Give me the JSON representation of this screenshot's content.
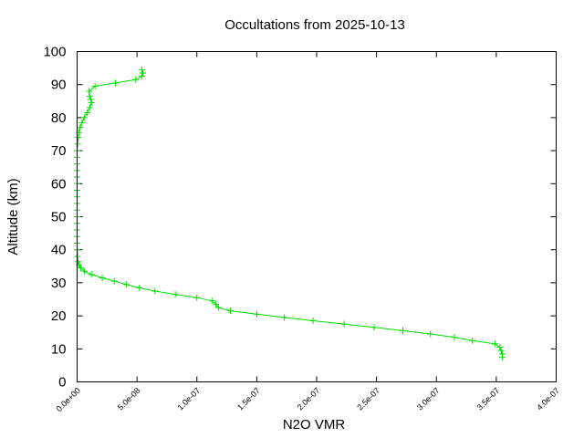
{
  "chart_data": {
    "type": "line",
    "title": "Occultations from 2025-10-13",
    "xlabel": "N2O VMR",
    "ylabel": "Altitude (km)",
    "xlim": [
      0,
      4e-07
    ],
    "ylim": [
      0,
      100
    ],
    "x_ticks": [
      0,
      5e-08,
      1e-07,
      1.5e-07,
      2e-07,
      2.5e-07,
      3e-07,
      3.5e-07,
      4e-07
    ],
    "x_tick_labels": [
      "0.0e+00",
      "5.0e-08",
      "1.0e-07",
      "1.5e-07",
      "2.0e-07",
      "2.5e-07",
      "3.0e-07",
      "3.5e-07",
      "4.0e-07"
    ],
    "y_ticks": [
      0,
      10,
      20,
      30,
      40,
      50,
      60,
      70,
      80,
      90,
      100
    ],
    "y_tick_labels": [
      "0",
      "10",
      "20",
      "30",
      "40",
      "50",
      "60",
      "70",
      "80",
      "90",
      "100"
    ],
    "grid": false,
    "legend": "none",
    "marker": "plus",
    "color": "#00e000",
    "series": [
      {
        "x": [
          3.55e-07,
          3.55e-07,
          3.54e-07,
          3.53e-07,
          3.49e-07,
          3.3e-07,
          3.15e-07,
          2.95e-07,
          2.72e-07,
          2.48e-07,
          2.23e-07,
          1.97e-07,
          1.73e-07,
          1.5e-07,
          1.28e-07,
          1.18e-07,
          1.16e-07,
          1.13e-07,
          1e-07,
          8.2e-08,
          6.5e-08,
          5.2e-08,
          4.1e-08,
          3.1e-08,
          2.1e-08,
          1.2e-08,
          6e-09,
          3e-09,
          1.5e-09,
          8e-10,
          3e-10,
          1e-10,
          0,
          0,
          0,
          0,
          0,
          0,
          0,
          0,
          0,
          0,
          0,
          0,
          0,
          0,
          0,
          5e-10,
          1e-09,
          1.5e-09,
          2.5e-09,
          4e-09,
          6e-09,
          8.5e-09,
          1.05e-08,
          1.2e-08,
          1.15e-08,
          1.05e-08,
          1e-08,
          1.5e-08,
          3.2e-08,
          4.9e-08,
          5.4e-08,
          5.5e-08,
          5.4e-08
        ],
        "y": [
          7.5,
          8.5,
          9.5,
          10.5,
          11.5,
          12.5,
          13.5,
          14.5,
          15.5,
          16.5,
          17.5,
          18.5,
          19.5,
          20.5,
          21.5,
          22.5,
          23.5,
          24.5,
          25.5,
          26.5,
          27.5,
          28.5,
          29.5,
          30.5,
          31.5,
          32.5,
          33.5,
          34.5,
          35.5,
          36.5,
          38,
          40,
          42,
          44,
          46,
          48,
          50,
          52,
          54,
          56,
          58,
          60,
          62,
          64,
          66,
          68,
          70,
          72,
          74,
          75.5,
          77,
          78.5,
          80,
          81.5,
          83,
          84.5,
          85.5,
          86.5,
          88,
          89.5,
          90.5,
          91.5,
          92.5,
          93.5,
          94.5
        ]
      }
    ]
  }
}
